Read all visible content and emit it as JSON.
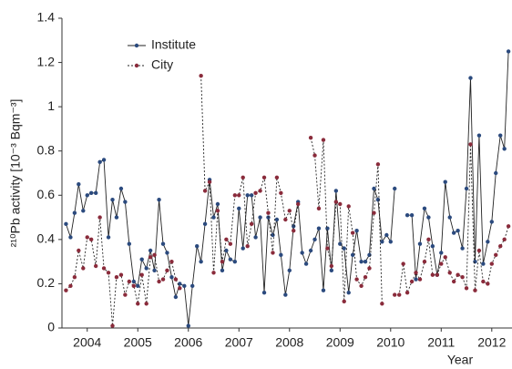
{
  "chart_data": {
    "type": "line",
    "ylabel": "²¹⁰Pb activity [10⁻³ Bqm⁻³]",
    "xlabel": "Year",
    "x": [
      2004.08,
      2004.17,
      2004.25,
      2004.33,
      2004.42,
      2004.5,
      2004.58,
      2004.67,
      2004.75,
      2004.83,
      2004.92,
      2005.0,
      2005.08,
      2005.17,
      2005.25,
      2005.33,
      2005.42,
      2005.5,
      2005.58,
      2005.67,
      2005.75,
      2005.83,
      2005.92,
      2006.0,
      2006.08,
      2006.17,
      2006.25,
      2006.33,
      2006.42,
      2006.5,
      2006.58,
      2006.67,
      2006.75,
      2006.83,
      2006.92,
      2007.0,
      2007.08,
      2007.17,
      2007.25,
      2007.33,
      2007.42,
      2007.5,
      2007.58,
      2007.67,
      2007.75,
      2007.83,
      2007.92,
      2008.0,
      2008.08,
      2008.17,
      2008.25,
      2008.33,
      2008.42,
      2008.5,
      2008.58,
      2008.67,
      2008.75,
      2008.83,
      2008.92,
      2009.0,
      2009.08,
      2009.17,
      2009.25,
      2009.33,
      2009.42,
      2009.5,
      2009.58,
      2009.67,
      2009.75,
      2009.83,
      2009.92,
      2010.0,
      2010.08,
      2010.17,
      2010.25,
      2010.33,
      2010.42,
      2010.5,
      2010.58,
      2010.67,
      2010.75,
      2010.83,
      2010.92,
      2011.0,
      2011.08,
      2011.17,
      2011.25,
      2011.33,
      2011.42,
      2011.5,
      2011.58,
      2011.67,
      2011.75,
      2011.83,
      2011.92,
      2012.0,
      2012.08,
      2012.17,
      2012.25,
      2012.33,
      2012.42,
      2012.5,
      2012.58,
      2012.67,
      2012.75,
      2012.83
    ],
    "series": [
      {
        "name": "Institute",
        "color": "#2b4a7e",
        "dashed": false,
        "values": [
          0.47,
          0.41,
          0.52,
          0.65,
          0.53,
          0.6,
          0.61,
          0.61,
          0.75,
          0.76,
          0.41,
          0.58,
          0.5,
          0.63,
          0.57,
          0.38,
          0.21,
          0.19,
          0.31,
          0.27,
          0.35,
          0.26,
          0.58,
          0.38,
          0.34,
          0.23,
          0.14,
          0.2,
          0.19,
          0.01,
          0.19,
          0.37,
          0.3,
          0.47,
          0.67,
          0.5,
          0.56,
          0.26,
          0.35,
          0.31,
          0.3,
          0.54,
          0.36,
          0.6,
          0.6,
          0.41,
          0.5,
          0.16,
          0.5,
          0.42,
          0.49,
          0.33,
          0.15,
          0.26,
          0.46,
          0.57,
          0.34,
          0.29,
          0.35,
          0.4,
          0.45,
          0.17,
          0.45,
          0.26,
          0.62,
          0.38,
          0.36,
          0.16,
          0.33,
          0.44,
          0.3,
          0.3,
          0.33,
          0.63,
          0.58,
          0.39,
          0.42,
          0.39,
          0.63,
          null,
          null,
          0.51,
          0.51,
          0.22,
          0.38,
          0.54,
          0.5,
          0.37,
          0.24,
          0.34,
          0.66,
          0.5,
          0.43,
          0.44,
          0.36,
          0.63,
          1.13,
          0.3,
          0.87,
          0.29,
          0.39,
          0.48,
          0.7,
          0.87,
          0.81,
          1.25
        ]
      },
      {
        "name": "City",
        "color": "#8a2b3b",
        "dashed": true,
        "values": [
          0.17,
          0.19,
          0.23,
          0.35,
          0.27,
          0.41,
          0.4,
          0.28,
          0.5,
          0.27,
          0.25,
          0.01,
          0.23,
          0.24,
          0.15,
          0.21,
          0.19,
          0.11,
          0.24,
          0.11,
          0.32,
          0.33,
          0.21,
          0.22,
          0.26,
          0.3,
          0.22,
          0.18,
          null,
          null,
          null,
          null,
          1.14,
          0.62,
          0.66,
          0.25,
          0.53,
          0.3,
          0.4,
          0.38,
          0.6,
          0.6,
          0.68,
          0.37,
          0.47,
          0.61,
          0.62,
          0.68,
          0.52,
          0.34,
          0.68,
          0.61,
          0.49,
          0.53,
          0.44,
          0.56,
          null,
          null,
          0.86,
          0.78,
          0.54,
          0.85,
          0.36,
          0.28,
          0.57,
          0.56,
          0.12,
          0.55,
          0.43,
          0.22,
          0.19,
          0.23,
          0.27,
          0.52,
          0.74,
          0.11,
          null,
          null,
          0.15,
          0.15,
          0.29,
          0.16,
          0.21,
          0.25,
          0.22,
          0.3,
          0.4,
          0.24,
          0.24,
          0.29,
          0.32,
          0.25,
          0.21,
          0.24,
          0.23,
          0.18,
          0.83,
          0.17,
          0.35,
          0.21,
          0.2,
          0.29,
          0.33,
          0.37,
          0.4,
          0.46
        ]
      }
    ],
    "xlim": [
      2004,
      2012.9
    ],
    "xticks": [
      {
        "value": 2004.5,
        "label": "2004"
      },
      {
        "value": 2005.5,
        "label": "2005"
      },
      {
        "value": 2006.5,
        "label": "2006"
      },
      {
        "value": 2007.5,
        "label": "2007"
      },
      {
        "value": 2008.5,
        "label": "2008"
      },
      {
        "value": 2009.5,
        "label": "2009"
      },
      {
        "value": 2010.5,
        "label": "2010"
      },
      {
        "value": 2011.5,
        "label": "2011"
      },
      {
        "value": 2012.5,
        "label": "2012"
      }
    ],
    "ylim": [
      0,
      1.4
    ],
    "yticks": [
      0,
      0.2,
      0.4,
      0.6,
      0.8,
      1,
      1.2,
      1.4
    ],
    "grid": false,
    "legend": "upper left"
  }
}
